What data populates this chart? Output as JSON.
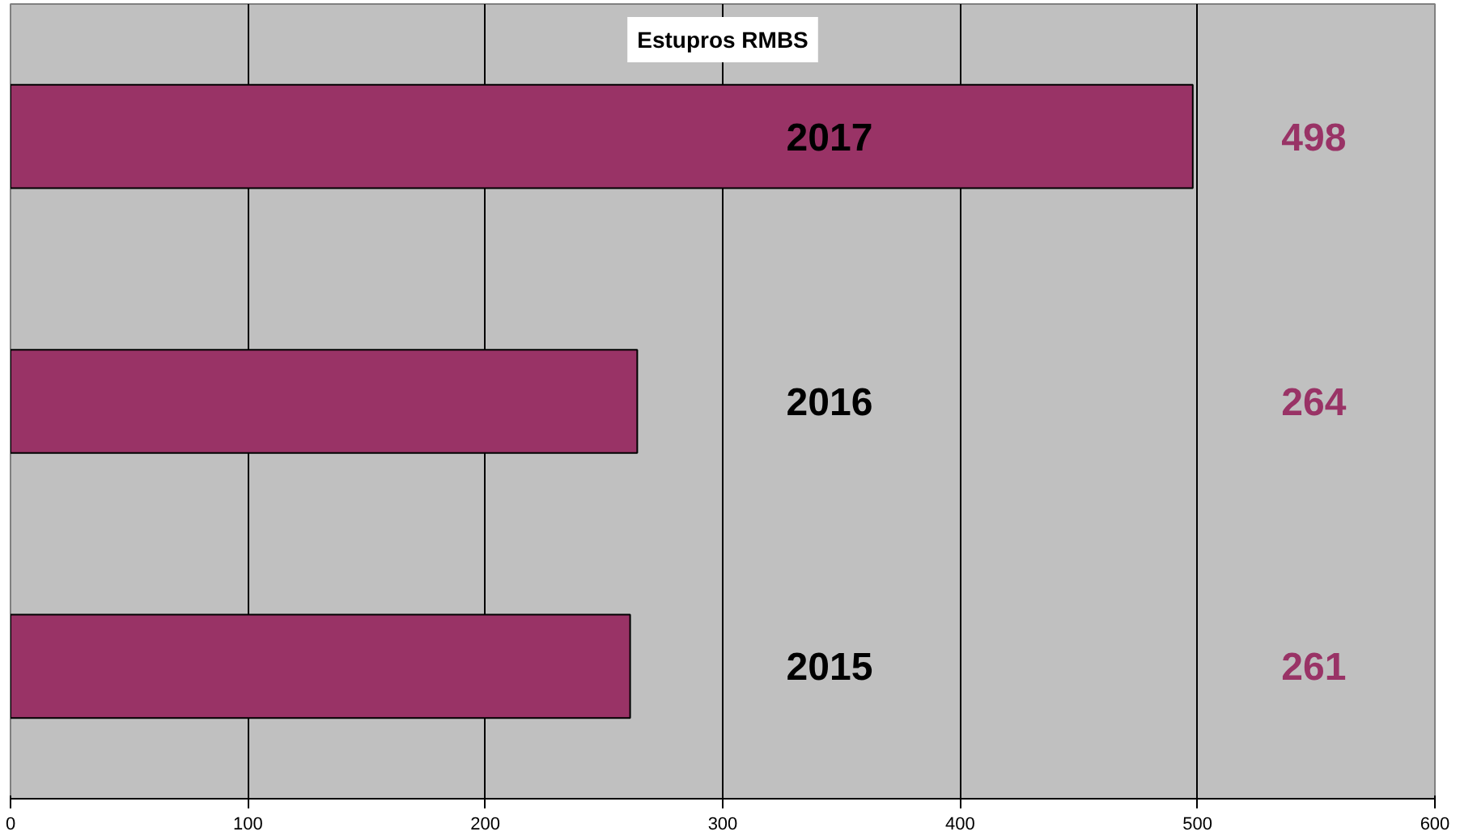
{
  "chart_data": {
    "type": "bar",
    "orientation": "horizontal",
    "title": "Estupros RMBS",
    "categories": [
      "2017",
      "2016",
      "2015"
    ],
    "values": [
      498,
      264,
      261
    ],
    "color": "#993366",
    "xlim": [
      0,
      600
    ],
    "xticks": [
      0,
      100,
      200,
      300,
      400,
      500,
      600
    ],
    "grid": "x",
    "data_labels": true,
    "tick_labels": "x"
  }
}
